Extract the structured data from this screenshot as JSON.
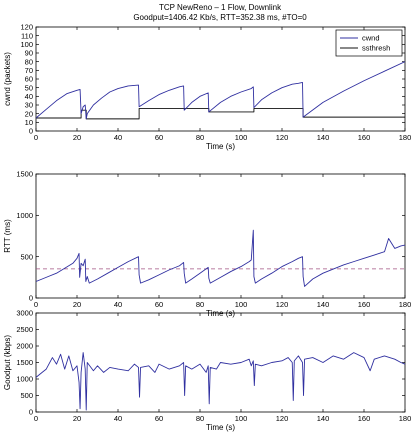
{
  "figure": {
    "title_line1": "TCP NewReno – 1 Flow, Downlink",
    "title_line2": "Goodput=1406.42 Kb/s, RTT=352.38 ms, #TO=0"
  },
  "chart_data": [
    {
      "type": "line",
      "xlabel": "Time (s)",
      "ylabel": "cwnd (packets)",
      "xlim": [
        0,
        180
      ],
      "ylim": [
        0,
        120
      ],
      "xticks": [
        0,
        20,
        40,
        60,
        80,
        100,
        120,
        140,
        160,
        180
      ],
      "yticks": [
        0,
        10,
        20,
        30,
        40,
        50,
        60,
        70,
        80,
        90,
        100,
        110,
        120
      ],
      "grid": false,
      "legend_position": "top-right",
      "series": [
        {
          "name": "cwnd",
          "color": "#3030a0",
          "x": [
            0,
            5,
            10,
            15,
            20,
            21.5,
            22,
            23,
            24,
            24.5,
            25,
            28,
            32,
            36,
            40,
            45,
            50,
            50.3,
            55,
            60,
            65,
            70,
            72,
            72.3,
            76,
            80,
            84,
            84.3,
            90,
            95,
            100,
            105,
            106,
            106.3,
            110,
            115,
            120,
            125,
            128,
            130,
            130.3,
            140,
            150,
            160,
            170,
            180
          ],
          "y": [
            15,
            25,
            35,
            43,
            47,
            48,
            20,
            28,
            30,
            14,
            20,
            30,
            38,
            45,
            49,
            52,
            53,
            28,
            35,
            42,
            47,
            51,
            52,
            24,
            33,
            40,
            44,
            22,
            33,
            40,
            45,
            49,
            51,
            27,
            36,
            44,
            50,
            54,
            55,
            56,
            16,
            33,
            46,
            58,
            69,
            80
          ]
        },
        {
          "name": "ssthresh",
          "color": "#101010",
          "x": [
            0,
            22,
            22,
            24.5,
            24.5,
            50.3,
            50.3,
            72.3,
            72.3,
            84.3,
            84.3,
            106.3,
            106.3,
            130.3,
            130.3,
            180
          ],
          "y": [
            15,
            15,
            24,
            24,
            14,
            14,
            26,
            26,
            26,
            26,
            22,
            22,
            26,
            26,
            16,
            16
          ]
        }
      ]
    },
    {
      "type": "line",
      "xlabel": "Time (s)",
      "ylabel": "RTT (ms)",
      "xlim": [
        0,
        180
      ],
      "ylim": [
        0,
        1500
      ],
      "xticks": [
        0,
        20,
        40,
        60,
        80,
        100,
        120,
        140,
        160,
        180
      ],
      "yticks": [
        0,
        500,
        1000,
        1500
      ],
      "grid": false,
      "reference_line": {
        "y": 352.38,
        "style": "dashed",
        "color": "#a05080"
      },
      "series": [
        {
          "color": "#3030a0",
          "x": [
            0,
            3,
            6,
            10,
            14,
            18,
            20,
            21,
            21.3,
            22,
            23,
            24,
            24.3,
            25,
            26,
            30,
            35,
            40,
            45,
            50,
            50.3,
            51,
            55,
            60,
            65,
            70,
            72,
            72.3,
            73,
            76,
            80,
            84,
            84.3,
            85,
            90,
            95,
            100,
            104,
            105,
            106,
            106.3,
            107,
            110,
            115,
            120,
            125,
            128,
            130,
            130.3,
            131,
            135,
            140,
            145,
            150,
            155,
            160,
            165,
            170,
            172,
            175,
            178,
            180
          ],
          "y": [
            200,
            230,
            260,
            300,
            360,
            420,
            480,
            540,
            250,
            420,
            390,
            470,
            200,
            260,
            180,
            230,
            300,
            370,
            440,
            500,
            280,
            180,
            220,
            280,
            340,
            390,
            430,
            300,
            180,
            230,
            300,
            370,
            240,
            180,
            250,
            320,
            380,
            440,
            460,
            820,
            260,
            180,
            230,
            300,
            380,
            440,
            480,
            500,
            260,
            140,
            230,
            300,
            350,
            400,
            440,
            480,
            520,
            560,
            720,
            600,
            630,
            640
          ]
        }
      ]
    },
    {
      "type": "line",
      "xlabel": "Time (s)",
      "ylabel": "Goodput (kbps)",
      "xlim": [
        0,
        180
      ],
      "ylim": [
        0,
        3000
      ],
      "xticks": [
        0,
        20,
        40,
        60,
        80,
        100,
        120,
        140,
        160,
        180
      ],
      "yticks": [
        0,
        500,
        1000,
        1500,
        2000,
        2500,
        3000
      ],
      "grid": false,
      "series": [
        {
          "color": "#3030a0",
          "x": [
            0,
            3,
            5,
            8,
            10,
            12,
            14,
            16,
            18,
            20,
            21,
            21.5,
            22,
            23,
            24,
            24.5,
            25,
            28,
            30,
            33,
            36,
            40,
            45,
            48,
            50,
            50.5,
            51,
            55,
            58,
            60,
            65,
            70,
            72,
            72.5,
            73,
            76,
            80,
            83,
            84,
            84.5,
            85,
            88,
            90,
            95,
            100,
            104,
            105,
            106,
            106.5,
            107,
            110,
            115,
            120,
            123,
            125,
            125.5,
            126,
            128,
            130,
            130.5,
            131,
            135,
            140,
            145,
            150,
            155,
            160,
            163,
            165,
            170,
            175,
            178,
            180
          ],
          "y": [
            1050,
            1200,
            1300,
            1650,
            1450,
            1750,
            1300,
            1700,
            1250,
            1400,
            900,
            100,
            1200,
            1800,
            1300,
            60,
            1500,
            1250,
            1400,
            1200,
            1350,
            1300,
            1250,
            1450,
            1350,
            450,
            1350,
            1400,
            1200,
            1450,
            1300,
            1400,
            1500,
            500,
            1400,
            1300,
            1450,
            1200,
            1400,
            250,
            1350,
            1300,
            1500,
            1450,
            1500,
            1600,
            1400,
            1550,
            800,
            1450,
            1400,
            1500,
            1550,
            1650,
            1500,
            350,
            1550,
            1700,
            1500,
            500,
            1600,
            1650,
            1500,
            1700,
            1600,
            1800,
            1650,
            1250,
            1600,
            1700,
            1600,
            1500,
            1450
          ]
        }
      ]
    }
  ]
}
